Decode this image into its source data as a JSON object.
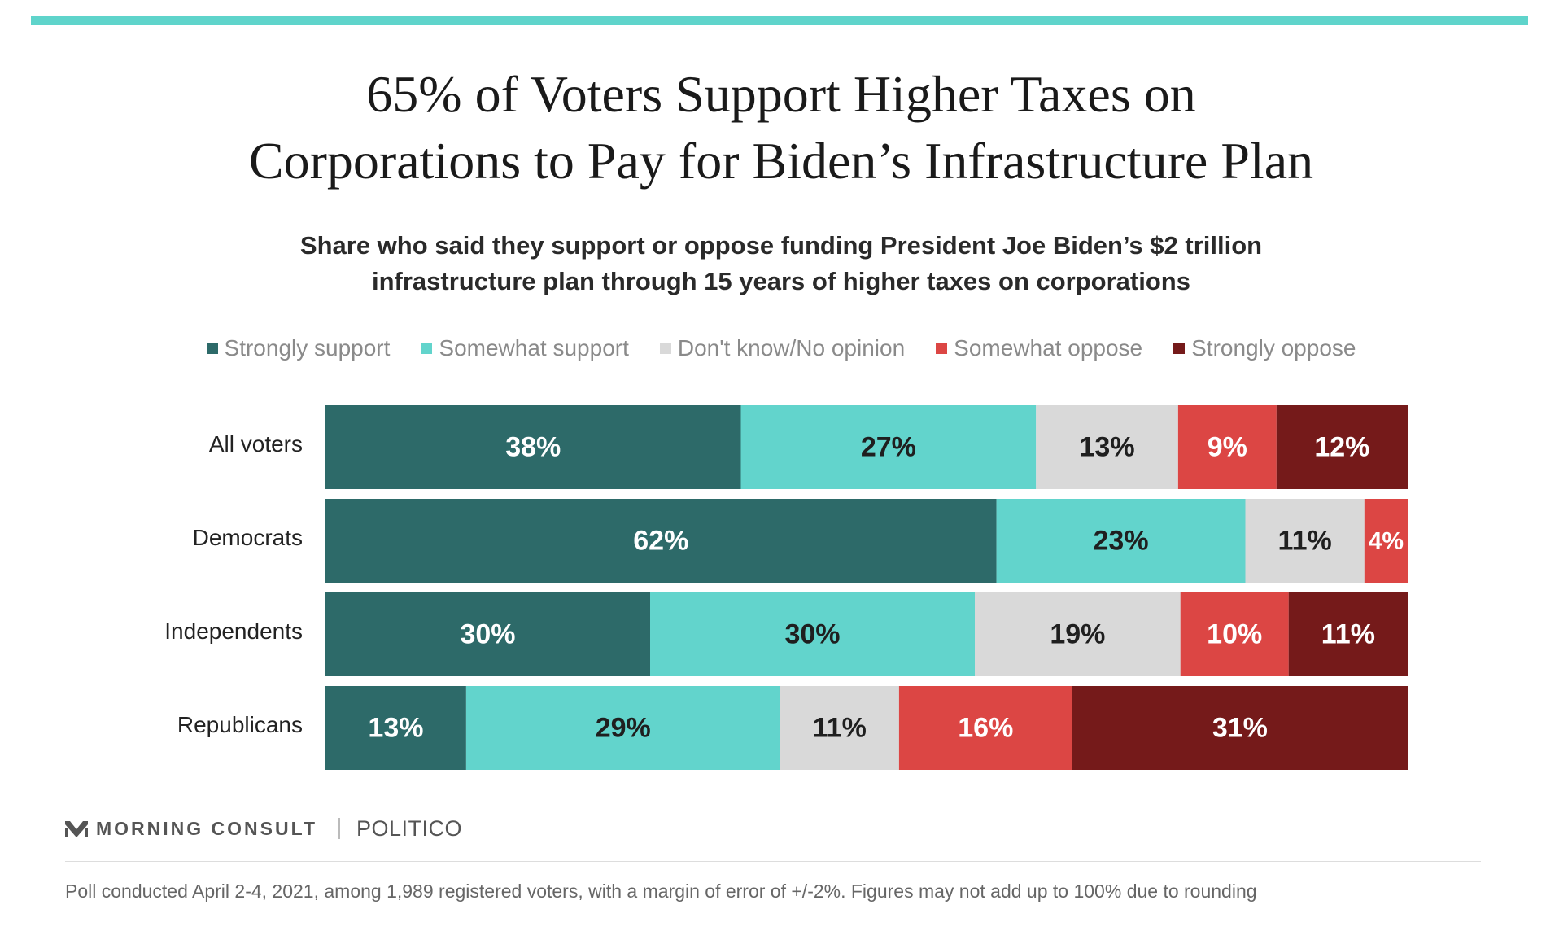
{
  "colors": {
    "accent_rule": "#5fd4cb",
    "strongly_support": "#2d6a69",
    "somewhat_support": "#62d4cc",
    "dont_know": "#d9d9d9",
    "somewhat_oppose": "#dc4644",
    "strongly_oppose": "#751a1a"
  },
  "header": {
    "title_line1": "65% of Voters Support Higher Taxes on",
    "title_line2": "Corporations to Pay for Biden’s Infrastructure Plan",
    "subtitle_line1": "Share who said they support or oppose funding President Joe Biden’s $2 trillion",
    "subtitle_line2": "infrastructure plan through 15 years of higher taxes on corporations"
  },
  "chart_data": {
    "type": "bar",
    "orientation": "horizontal",
    "stacked": true,
    "legend_position": "top",
    "grid": false,
    "categories": [
      "All voters",
      "Democrats",
      "Independents",
      "Republicans"
    ],
    "series": [
      {
        "name": "Strongly support",
        "values": [
          38,
          62,
          30,
          13
        ],
        "labels": [
          "38%",
          "62%",
          "30%",
          "13%"
        ]
      },
      {
        "name": "Somewhat support",
        "values": [
          27,
          23,
          30,
          29
        ],
        "labels": [
          "27%",
          "23%",
          "30%",
          "29%"
        ]
      },
      {
        "name": "Don't know/No opinion",
        "values": [
          13,
          11,
          19,
          11
        ],
        "labels": [
          "13%",
          "11%",
          "19%",
          "11%"
        ]
      },
      {
        "name": "Somewhat oppose",
        "values": [
          9,
          4,
          10,
          16
        ],
        "labels": [
          "9%",
          "4%",
          "10%",
          "16%"
        ]
      },
      {
        "name": "Strongly oppose",
        "values": [
          12,
          0,
          11,
          31
        ],
        "labels": [
          "12%",
          "",
          "11%",
          "31%"
        ]
      }
    ],
    "xlim": [
      0,
      100
    ]
  },
  "brand": {
    "logo_icon": "morning-consult-logo-icon",
    "morning_consult": "MORNING CONSULT",
    "politico": "POLITICO"
  },
  "footnote": "Poll conducted April 2-4, 2021, among 1,989 registered voters, with a margin of error of +/-2%. Figures may not add up to 100% due to rounding"
}
